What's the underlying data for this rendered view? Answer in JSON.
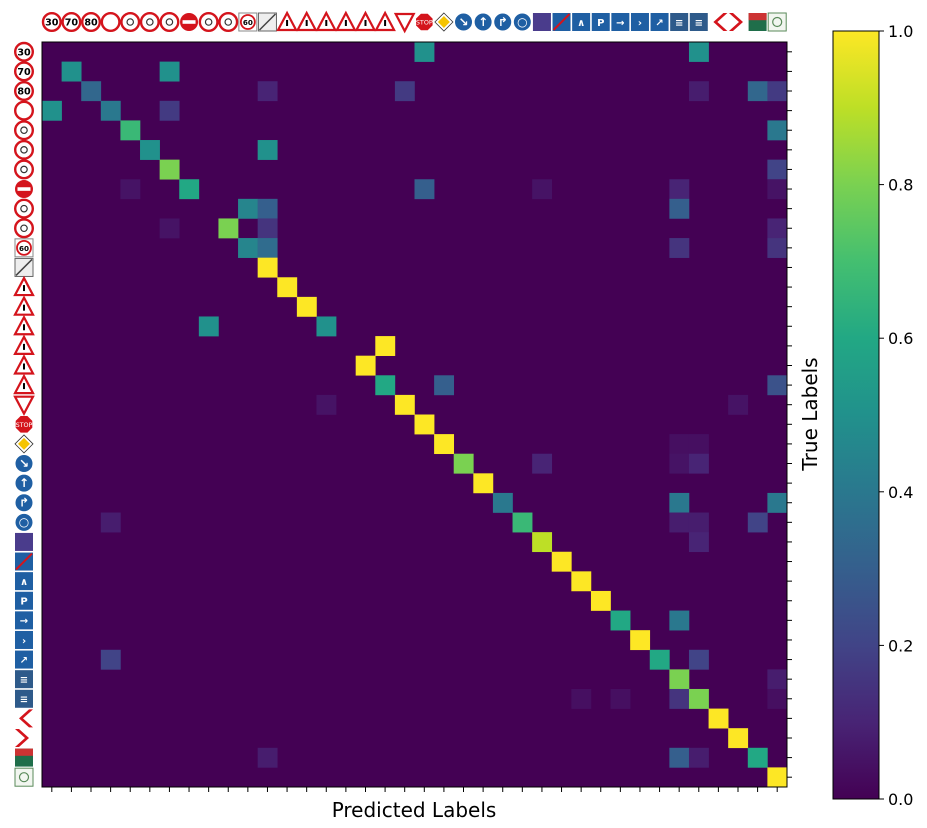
{
  "chart_data": {
    "type": "heatmap",
    "title": "",
    "xlabel": "Predicted Labels",
    "ylabel": "True Labels",
    "n_classes": 38,
    "row_class_icons": [
      "speed-limit-30-sign-icon",
      "speed-limit-70-sign-icon",
      "speed-limit-80-sign-icon",
      "no-vehicles-sign-icon",
      "no-mopeds-sign-icon",
      "no-bicycles-sign-icon",
      "no-bicycles-mopeds-sign-icon",
      "no-entry-sign-icon",
      "no-trucks-sign-icon",
      "no-motorcycles-sign-icon",
      "zone-60-sign-icon",
      "end-zone-sign-icon",
      "pedestrian-warning-sign-icon",
      "caution-warning-sign-icon",
      "children-warning-sign-icon",
      "pedestrian-crossing-warning-sign-icon",
      "bicycle-warning-sign-icon",
      "general-danger-sign-icon",
      "yield-sign-icon",
      "stop-sign-icon",
      "priority-road-sign-icon",
      "keep-right-sign-icon",
      "ahead-only-sign-icon",
      "turn-ahead-sign-icon",
      "cycle-path-sign-icon",
      "bus-lane-sign-icon",
      "end-expressway-sign-icon",
      "motorway-sign-icon",
      "parking-sign-icon",
      "exit-arrow-sign-icon",
      "exit-sign-icon",
      "turn-right-arrow-sign-icon",
      "info-panel-sign-icon",
      "route-board-sign-icon",
      "chevron-left-sign-icon",
      "chevron-right-sign-icon",
      "distance-board-sign-icon",
      "cycle-zone-sign-icon"
    ],
    "col_class_icons": [
      "speed-limit-30-sign-icon",
      "speed-limit-70-sign-icon",
      "speed-limit-80-sign-icon",
      "no-vehicles-sign-icon",
      "no-mopeds-sign-icon",
      "no-bicycles-sign-icon",
      "no-bicycles-mopeds-sign-icon",
      "no-entry-sign-icon",
      "no-trucks-sign-icon",
      "no-motorcycles-sign-icon",
      "zone-60-sign-icon",
      "end-zone-sign-icon",
      "pedestrian-warning-sign-icon",
      "caution-warning-sign-icon",
      "children-warning-sign-icon",
      "pedestrian-crossing-warning-sign-icon",
      "bicycle-warning-sign-icon",
      "general-danger-sign-icon",
      "yield-sign-icon",
      "stop-sign-icon",
      "priority-road-sign-icon",
      "keep-right-sign-icon",
      "ahead-only-sign-icon",
      "turn-ahead-sign-icon",
      "cycle-path-sign-icon",
      "bus-lane-sign-icon",
      "end-expressway-sign-icon",
      "motorway-sign-icon",
      "parking-sign-icon",
      "exit-arrow-sign-icon",
      "exit-sign-icon",
      "turn-right-arrow-sign-icon",
      "info-panel-sign-icon",
      "route-board-sign-icon",
      "chevron-left-sign-icon",
      "chevron-right-sign-icon",
      "distance-board-sign-icon",
      "cycle-zone-sign-icon"
    ],
    "cells": [
      [
        0,
        19,
        0.5
      ],
      [
        0,
        33,
        0.5
      ],
      [
        1,
        1,
        0.5
      ],
      [
        1,
        6,
        0.5
      ],
      [
        2,
        2,
        0.33
      ],
      [
        2,
        11,
        0.1
      ],
      [
        2,
        18,
        0.17
      ],
      [
        2,
        33,
        0.08
      ],
      [
        2,
        36,
        0.33
      ],
      [
        2,
        37,
        0.17
      ],
      [
        3,
        0,
        0.5
      ],
      [
        3,
        3,
        0.4
      ],
      [
        3,
        6,
        0.17
      ],
      [
        4,
        4,
        0.67
      ],
      [
        4,
        37,
        0.4
      ],
      [
        5,
        5,
        0.5
      ],
      [
        5,
        11,
        0.5
      ],
      [
        6,
        6,
        0.8
      ],
      [
        6,
        37,
        0.2
      ],
      [
        7,
        4,
        0.05
      ],
      [
        7,
        7,
        0.6
      ],
      [
        7,
        19,
        0.3
      ],
      [
        7,
        25,
        0.05
      ],
      [
        7,
        32,
        0.1
      ],
      [
        7,
        37,
        0.05
      ],
      [
        8,
        10,
        0.45
      ],
      [
        8,
        11,
        0.3
      ],
      [
        8,
        32,
        0.3
      ],
      [
        9,
        6,
        0.05
      ],
      [
        9,
        9,
        0.8
      ],
      [
        9,
        11,
        0.15
      ],
      [
        9,
        37,
        0.1
      ],
      [
        10,
        10,
        0.45
      ],
      [
        10,
        11,
        0.35
      ],
      [
        10,
        32,
        0.15
      ],
      [
        10,
        37,
        0.15
      ],
      [
        11,
        11,
        1.0
      ],
      [
        12,
        12,
        1.0
      ],
      [
        13,
        13,
        1.0
      ],
      [
        14,
        8,
        0.5
      ],
      [
        14,
        14,
        0.5
      ],
      [
        15,
        17,
        1.0
      ],
      [
        16,
        16,
        1.0
      ],
      [
        17,
        17,
        0.6
      ],
      [
        17,
        20,
        0.3
      ],
      [
        17,
        37,
        0.25
      ],
      [
        18,
        14,
        0.05
      ],
      [
        18,
        18,
        1.0
      ],
      [
        18,
        35,
        0.05
      ],
      [
        19,
        19,
        1.0
      ],
      [
        20,
        20,
        1.0
      ],
      [
        20,
        32,
        0.04
      ],
      [
        20,
        33,
        0.04
      ],
      [
        21,
        21,
        0.8
      ],
      [
        21,
        25,
        0.1
      ],
      [
        21,
        32,
        0.05
      ],
      [
        21,
        33,
        0.1
      ],
      [
        22,
        22,
        1.0
      ],
      [
        23,
        23,
        0.4
      ],
      [
        23,
        32,
        0.4
      ],
      [
        23,
        37,
        0.4
      ],
      [
        24,
        3,
        0.08
      ],
      [
        24,
        24,
        0.67
      ],
      [
        24,
        32,
        0.08
      ],
      [
        24,
        33,
        0.08
      ],
      [
        24,
        36,
        0.2
      ],
      [
        25,
        25,
        0.9
      ],
      [
        25,
        33,
        0.1
      ],
      [
        26,
        26,
        1.0
      ],
      [
        27,
        27,
        1.0
      ],
      [
        28,
        28,
        1.0
      ],
      [
        29,
        29,
        0.6
      ],
      [
        29,
        32,
        0.4
      ],
      [
        30,
        30,
        1.0
      ],
      [
        31,
        3,
        0.2
      ],
      [
        31,
        31,
        0.6
      ],
      [
        31,
        33,
        0.2
      ],
      [
        32,
        32,
        0.8
      ],
      [
        32,
        37,
        0.08
      ],
      [
        33,
        27,
        0.04
      ],
      [
        33,
        29,
        0.04
      ],
      [
        33,
        32,
        0.15
      ],
      [
        33,
        33,
        0.8
      ],
      [
        33,
        37,
        0.04
      ],
      [
        34,
        34,
        1.0
      ],
      [
        35,
        35,
        1.0
      ],
      [
        36,
        11,
        0.08
      ],
      [
        36,
        32,
        0.3
      ],
      [
        36,
        33,
        0.08
      ],
      [
        36,
        36,
        0.6
      ],
      [
        37,
        37,
        1.0
      ]
    ],
    "colorbar": {
      "colormap": "viridis",
      "range": [
        0.0,
        1.0
      ],
      "ticks": [
        "0.0",
        "0.2",
        "0.4",
        "0.6",
        "0.8",
        "1.0"
      ]
    },
    "grid": false
  }
}
